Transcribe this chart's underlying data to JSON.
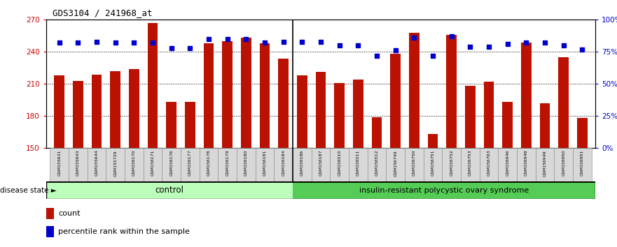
{
  "title": "GDS3104 / 241968_at",
  "samples": [
    "GSM155631",
    "GSM155643",
    "GSM155644",
    "GSM155729",
    "GSM156170",
    "GSM156171",
    "GSM156176",
    "GSM156177",
    "GSM156178",
    "GSM156179",
    "GSM156180",
    "GSM156181",
    "GSM156184",
    "GSM156186",
    "GSM156187",
    "GSM156510",
    "GSM156511",
    "GSM156512",
    "GSM156749",
    "GSM156750",
    "GSM156751",
    "GSM156752",
    "GSM156753",
    "GSM156763",
    "GSM156946",
    "GSM156948",
    "GSM156949",
    "GSM156950",
    "GSM156951"
  ],
  "counts": [
    218,
    213,
    219,
    222,
    224,
    267,
    193,
    193,
    248,
    250,
    253,
    248,
    234,
    218,
    221,
    211,
    214,
    179,
    238,
    258,
    163,
    256,
    208,
    212,
    193,
    249,
    192,
    235,
    178
  ],
  "percentiles": [
    82,
    82,
    83,
    82,
    82,
    82,
    78,
    78,
    85,
    85,
    85,
    82,
    83,
    83,
    83,
    80,
    80,
    72,
    76,
    86,
    72,
    87,
    79,
    79,
    81,
    82,
    82,
    80,
    77
  ],
  "control_count": 13,
  "ylim_left": [
    150,
    270
  ],
  "ylim_right": [
    0,
    100
  ],
  "yticks_left": [
    150,
    180,
    210,
    240,
    270
  ],
  "yticks_right": [
    0,
    25,
    50,
    75,
    100
  ],
  "bar_color": "#bb1100",
  "dot_color": "#0000cc",
  "control_label": "control",
  "disease_label": "insulin-resistant polycystic ovary syndrome",
  "disease_state_label": "disease state",
  "legend_count": "count",
  "legend_percentile": "percentile rank within the sample",
  "control_bg": "#ccffcc",
  "disease_bg": "#55cc55",
  "ylabel_left_color": "#cc0000",
  "ylabel_right_color": "#0000cc"
}
